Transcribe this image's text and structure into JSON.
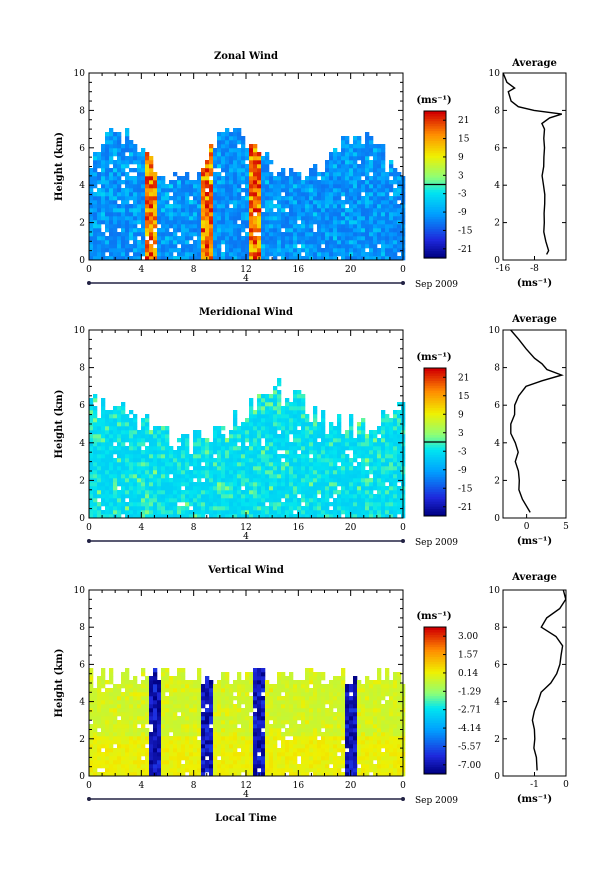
{
  "figure": {
    "date_label": "Sep 2009",
    "xlabel": "Local Time"
  },
  "chart_data": [
    {
      "type": "heatmap",
      "title": "Zonal Wind",
      "xlabel": "",
      "ylabel": "Height (km)",
      "xlim": [
        0,
        24
      ],
      "ylim": [
        0,
        10
      ],
      "xticks": [
        "0",
        "4",
        "8",
        "12",
        "16",
        "20",
        "0"
      ],
      "yticks": [
        "0",
        "2",
        "4",
        "6",
        "8",
        "10"
      ],
      "date_marker": "4",
      "colorbar": {
        "unit": "(ms⁻¹)",
        "ticks": [
          "21",
          "15",
          "9",
          "3",
          "-3",
          "-9",
          "-15",
          "-21"
        ],
        "min": -24,
        "max": 24
      },
      "approx_field_values": {
        "typical_range": [
          -18,
          -3
        ],
        "strong_columns_at_hours": [
          4.5,
          9,
          12.5
        ]
      },
      "average_profile": {
        "title": "Average",
        "xlabel": "(ms⁻¹)",
        "xlim": [
          -16,
          0
        ],
        "xticks": [
          "-16",
          "-8"
        ],
        "height": [
          0.3,
          0.5,
          1,
          1.5,
          2,
          2.5,
          3,
          3.5,
          4,
          4.5,
          5,
          5.5,
          6,
          6.5,
          7,
          7.3,
          7.6,
          7.8,
          8,
          8.2,
          8.5,
          9,
          9.2,
          9.5,
          10
        ],
        "value": [
          -5,
          -4.5,
          -5,
          -5.5,
          -5.5,
          -5.5,
          -5.5,
          -5.5,
          -5.8,
          -6,
          -5.8,
          -5.5,
          -5.5,
          -5.5,
          -5.5,
          -6,
          -4,
          -1,
          -8,
          -12,
          -14,
          -14.5,
          -13,
          -15,
          -16
        ]
      }
    },
    {
      "type": "heatmap",
      "title": "Meridional Wind",
      "xlabel": "",
      "ylabel": "Height (km)",
      "xlim": [
        0,
        24
      ],
      "ylim": [
        0,
        10
      ],
      "xticks": [
        "0",
        "4",
        "8",
        "12",
        "16",
        "20",
        "0"
      ],
      "yticks": [
        "0",
        "2",
        "4",
        "6",
        "8",
        "10"
      ],
      "date_marker": "4",
      "colorbar": {
        "unit": "(ms⁻¹)",
        "ticks": [
          "21",
          "15",
          "9",
          "3",
          "-3",
          "-9",
          "-15",
          "-21"
        ],
        "min": -24,
        "max": 24
      },
      "approx_field_values": {
        "typical_range": [
          -9,
          3
        ]
      },
      "average_profile": {
        "title": "Average",
        "xlabel": "(ms⁻¹)",
        "xlim": [
          -3,
          5
        ],
        "xticks": [
          "0",
          "5"
        ],
        "height": [
          0.3,
          1,
          1.5,
          2,
          2.5,
          3,
          3.5,
          4,
          4.5,
          5,
          5.5,
          6,
          6.5,
          7,
          7.3,
          7.6,
          7.9,
          8.2,
          8.5,
          9,
          9.5,
          10
        ],
        "value": [
          0.5,
          -0.5,
          -1,
          -1,
          -1,
          -1.5,
          -1,
          -1.5,
          -2,
          -2,
          -1.5,
          -1.5,
          -1,
          0,
          2,
          4.5,
          2.5,
          2,
          1,
          0,
          -1,
          -2
        ]
      }
    },
    {
      "type": "heatmap",
      "title": "Vertical Wind",
      "xlabel": "Local Time",
      "ylabel": "Height (km)",
      "xlim": [
        0,
        24
      ],
      "ylim": [
        0,
        10
      ],
      "xticks": [
        "0",
        "4",
        "8",
        "12",
        "16",
        "20",
        "0"
      ],
      "yticks": [
        "0",
        "2",
        "4",
        "6",
        "8",
        "10"
      ],
      "date_marker": "4",
      "colorbar": {
        "unit": "(ms⁻¹)",
        "ticks": [
          "3.00",
          "1.57",
          "0.14",
          "-1.29",
          "-2.71",
          "-4.14",
          "-5.57",
          "-7.00"
        ],
        "min": -7.72,
        "max": 3.72
      },
      "approx_field_values": {
        "typical_range": [
          -1,
          0.5
        ],
        "strong_downdrafts_at_hours": [
          4.8,
          9,
          12.8,
          20
        ]
      },
      "average_profile": {
        "title": "Average",
        "xlabel": "(ms⁻¹)",
        "xlim": [
          -2,
          0
        ],
        "xticks": [
          "-1",
          "0"
        ],
        "height": [
          0.3,
          1,
          1.5,
          2,
          2.5,
          3,
          3.5,
          4,
          4.5,
          5,
          5.5,
          6,
          6.5,
          7,
          7.5,
          8,
          8.5,
          9,
          9.5,
          10
        ],
        "value": [
          -0.9,
          -0.95,
          -1,
          -1,
          -1,
          -1.05,
          -1,
          -0.9,
          -0.8,
          -0.5,
          -0.3,
          -0.2,
          -0.15,
          -0.1,
          -0.3,
          -0.8,
          -0.6,
          -0.2,
          0,
          -0.1
        ]
      }
    }
  ]
}
